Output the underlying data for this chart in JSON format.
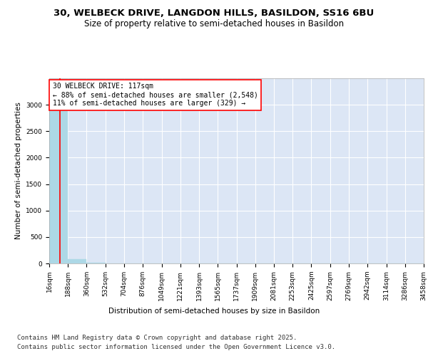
{
  "title": "30, WELBECK DRIVE, LANGDON HILLS, BASILDON, SS16 6BU",
  "subtitle": "Size of property relative to semi-detached houses in Basildon",
  "xlabel": "Distribution of semi-detached houses by size in Basildon",
  "ylabel": "Number of semi-detached properties",
  "footer_line1": "Contains HM Land Registry data © Crown copyright and database right 2025.",
  "footer_line2": "Contains public sector information licensed under the Open Government Licence v3.0.",
  "annotation_text_line1": "30 WELBECK DRIVE: 117sqm",
  "annotation_text_line2": "← 88% of semi-detached houses are smaller (2,548)",
  "annotation_text_line3": "11% of semi-detached houses are larger (329) →",
  "property_size": 117,
  "bin_edges": [
    16,
    188,
    360,
    532,
    704,
    876,
    1049,
    1221,
    1393,
    1565,
    1737,
    1909,
    2081,
    2253,
    2425,
    2597,
    2769,
    2942,
    3114,
    3286,
    3458
  ],
  "bar_heights": [
    2877,
    75,
    12,
    4,
    1,
    2,
    1,
    0,
    0,
    0,
    0,
    0,
    0,
    0,
    0,
    0,
    0,
    0,
    0,
    1
  ],
  "bar_color": "#add8e6",
  "bar_edgecolor": "#add8e6",
  "vline_color": "red",
  "annotation_box_edgecolor": "red",
  "background_color": "#dce6f5",
  "ylim": [
    0,
    3500
  ],
  "yticks": [
    0,
    500,
    1000,
    1500,
    2000,
    2500,
    3000
  ],
  "grid_color": "#ffffff",
  "title_fontsize": 9.5,
  "subtitle_fontsize": 8.5,
  "axis_label_fontsize": 7.5,
  "tick_fontsize": 6.5,
  "annotation_fontsize": 7,
  "footer_fontsize": 6.5
}
